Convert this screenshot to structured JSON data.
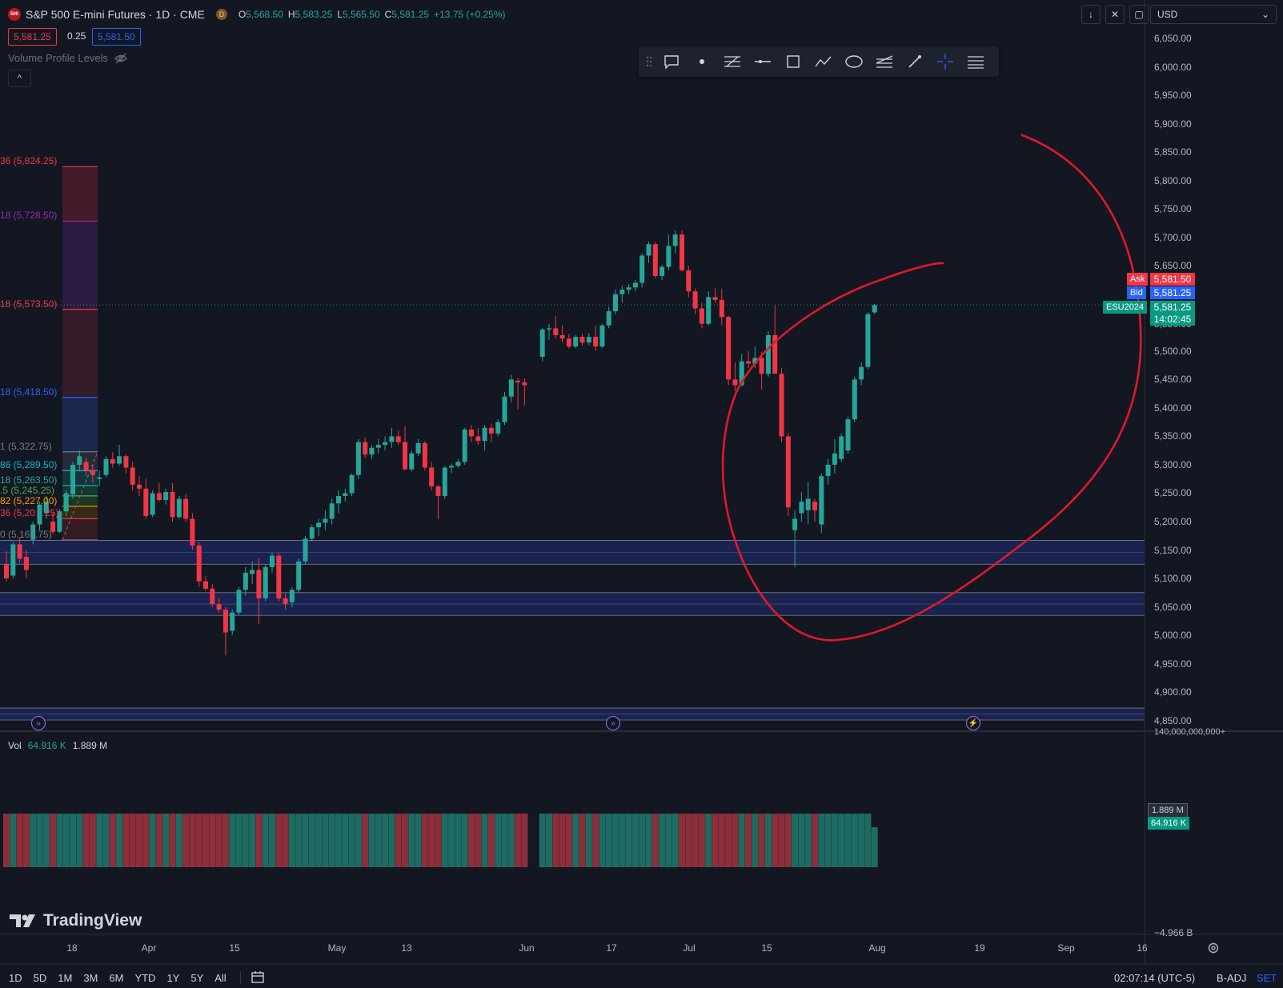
{
  "header": {
    "logo_text": "500",
    "symbol_title": "S&P 500 E-mini Futures · 1D · CME",
    "d_badge": "D",
    "open_key": "O",
    "open": "5,568.50",
    "high_key": "H",
    "high": "5,583.25",
    "low_key": "L",
    "low": "5,565.50",
    "close_key": "C",
    "close": "5,581.25",
    "change": "+13.75 (+0.25%)",
    "sell_price": "5,581.25",
    "spread": "0.25",
    "buy_price": "5,581.50",
    "indicator_label": "Volume Profile Levels",
    "collapse_glyph": "^"
  },
  "top_controls": {
    "download_icon": "download-icon",
    "fullscreen_icon": "fullscreen-icon",
    "restore_icon": "restore-icon",
    "currency": "USD"
  },
  "drawing_toolbar": {
    "tools": [
      "drag-handle-icon",
      "comment-icon",
      "dot-icon",
      "fib-levels-icon",
      "horizontal-line-icon",
      "rectangle-icon",
      "path-icon",
      "ellipse-icon",
      "parallel-channel-icon",
      "brush-icon",
      "crosshair-icon",
      "settings-lines-icon"
    ]
  },
  "y_axis": {
    "labels": [
      "6,050.00",
      "6,000.00",
      "5,950.00",
      "5,900.00",
      "5,850.00",
      "5,800.00",
      "5,750.00",
      "5,700.00",
      "5,650.00",
      "5,500.00",
      "5,450.00",
      "5,400.00",
      "5,350.00",
      "5,300.00",
      "5,250.00",
      "5,200.00",
      "5,150.00",
      "5,100.00",
      "5,050.00",
      "5,000.00",
      "4,950.00",
      "4,900.00",
      "4,850.00"
    ],
    "partial_label": "5,550.00",
    "ask_label": "Ask",
    "ask_price": "5,581.50",
    "bid_label": "Bid",
    "bid_price": "5,581.25",
    "contract": "ESU2024",
    "last_price": "5,581.25",
    "countdown": "14:02:45",
    "vol_axis_top": "140,000,000,000+",
    "vol_axis_bottom": "−4.966 B",
    "vol_tag_1": "1.889 M",
    "vol_tag_2": "64.916 K"
  },
  "fib_levels": [
    {
      "text": "36 (5,824.25)",
      "color": "#f23645"
    },
    {
      "text": "18 (5,728.50)",
      "color": "#9c27b0"
    },
    {
      "text": "18 (5,573.50)",
      "color": "#f23645"
    },
    {
      "text": "18 (5,418.50)",
      "color": "#2962ff"
    },
    {
      "text": "1 (5,322.75)",
      "color": "#787b86"
    },
    {
      "text": "86 (5,289.50)",
      "color": "#00bcd4"
    },
    {
      "text": "18 (5,263.50)",
      "color": "#26a69a"
    },
    {
      "text": ".5 (5,245.25)",
      "color": "#4caf50"
    },
    {
      "text": "82 (5,227.00)",
      "color": "#ff9800"
    },
    {
      "text": "36 (5,20…25)",
      "color": "#f23645"
    },
    {
      "text": "0 (5,167.75)",
      "color": "#787b86"
    }
  ],
  "x_axis": {
    "labels": [
      "18",
      "Apr",
      "15",
      "May",
      "13",
      "Jun",
      "17",
      "Jul",
      "15",
      "Aug",
      "19",
      "Sep",
      "16"
    ]
  },
  "volume": {
    "label": "Vol",
    "value_1": "64.916 K",
    "value_2": "1.889 M"
  },
  "branding": {
    "name": "TradingView"
  },
  "bottom_bar": {
    "timeframes": [
      "1D",
      "5D",
      "1M",
      "3M",
      "6M",
      "YTD",
      "1Y",
      "5Y",
      "All"
    ],
    "clock": "02:07:14 (UTC-5)",
    "adj": "B-ADJ",
    "set": "SET"
  },
  "chart_data": {
    "type": "candlestick",
    "y_range": [
      4825,
      6075
    ],
    "candles": [
      [
        5125,
        5148,
        5095,
        5100
      ],
      [
        5105,
        5165,
        5100,
        5160
      ],
      [
        5160,
        5172,
        5128,
        5135
      ],
      [
        5138,
        5150,
        5100,
        5115
      ],
      [
        5168,
        5200,
        5160,
        5195
      ],
      [
        5195,
        5235,
        5185,
        5230
      ],
      [
        5215,
        5245,
        5205,
        5235
      ],
      [
        5200,
        5215,
        5178,
        5182
      ],
      [
        5182,
        5222,
        5180,
        5218
      ],
      [
        5218,
        5255,
        5210,
        5250
      ],
      [
        5248,
        5305,
        5240,
        5300
      ],
      [
        5300,
        5325,
        5290,
        5315
      ],
      [
        5305,
        5312,
        5280,
        5290
      ],
      [
        5290,
        5300,
        5268,
        5282
      ],
      [
        5275,
        5290,
        5262,
        5278
      ],
      [
        5282,
        5315,
        5278,
        5310
      ],
      [
        5310,
        5322,
        5295,
        5302
      ],
      [
        5302,
        5335,
        5298,
        5315
      ],
      [
        5315,
        5318,
        5285,
        5295
      ],
      [
        5295,
        5305,
        5255,
        5265
      ],
      [
        5265,
        5280,
        5245,
        5258
      ],
      [
        5258,
        5275,
        5205,
        5210
      ],
      [
        5212,
        5255,
        5208,
        5250
      ],
      [
        5250,
        5268,
        5235,
        5238
      ],
      [
        5238,
        5258,
        5230,
        5252
      ],
      [
        5252,
        5268,
        5200,
        5208
      ],
      [
        5208,
        5245,
        5205,
        5240
      ],
      [
        5240,
        5248,
        5200,
        5205
      ],
      [
        5205,
        5215,
        5150,
        5158
      ],
      [
        5158,
        5165,
        5085,
        5095
      ],
      [
        5095,
        5105,
        5078,
        5082
      ],
      [
        5082,
        5090,
        5050,
        5055
      ],
      [
        5055,
        5065,
        5040,
        5045
      ],
      [
        5045,
        5050,
        4965,
        5005
      ],
      [
        5008,
        5045,
        5000,
        5040
      ],
      [
        5040,
        5085,
        5035,
        5080
      ],
      [
        5080,
        5120,
        5070,
        5110
      ],
      [
        5108,
        5130,
        5090,
        5115
      ],
      [
        5115,
        5135,
        5020,
        5065
      ],
      [
        5065,
        5125,
        5060,
        5120
      ],
      [
        5120,
        5145,
        5110,
        5140
      ],
      [
        5140,
        5145,
        5060,
        5065
      ],
      [
        5065,
        5075,
        5045,
        5055
      ],
      [
        5058,
        5085,
        5050,
        5080
      ],
      [
        5080,
        5135,
        5075,
        5130
      ],
      [
        5130,
        5175,
        5125,
        5170
      ],
      [
        5170,
        5195,
        5165,
        5190
      ],
      [
        5190,
        5205,
        5175,
        5198
      ],
      [
        5198,
        5220,
        5185,
        5205
      ],
      [
        5205,
        5240,
        5195,
        5232
      ],
      [
        5232,
        5255,
        5215,
        5245
      ],
      [
        5245,
        5258,
        5235,
        5250
      ],
      [
        5250,
        5285,
        5245,
        5282
      ],
      [
        5282,
        5345,
        5275,
        5340
      ],
      [
        5340,
        5348,
        5312,
        5318
      ],
      [
        5318,
        5335,
        5310,
        5330
      ],
      [
        5330,
        5345,
        5320,
        5335
      ],
      [
        5335,
        5350,
        5325,
        5340
      ],
      [
        5340,
        5365,
        5330,
        5350
      ],
      [
        5350,
        5360,
        5335,
        5340
      ],
      [
        5340,
        5368,
        5290,
        5292
      ],
      [
        5292,
        5325,
        5288,
        5320
      ],
      [
        5320,
        5345,
        5315,
        5338
      ],
      [
        5338,
        5342,
        5290,
        5295
      ],
      [
        5295,
        5305,
        5255,
        5262
      ],
      [
        5262,
        5265,
        5205,
        5245
      ],
      [
        5245,
        5298,
        5240,
        5295
      ],
      [
        5295,
        5302,
        5285,
        5298
      ],
      [
        5298,
        5310,
        5295,
        5305
      ],
      [
        5305,
        5365,
        5300,
        5362
      ],
      [
        5362,
        5370,
        5340,
        5350
      ],
      [
        5350,
        5365,
        5335,
        5342
      ],
      [
        5342,
        5370,
        5325,
        5365
      ],
      [
        5365,
        5372,
        5340,
        5355
      ],
      [
        5355,
        5380,
        5350,
        5375
      ],
      [
        5375,
        5428,
        5370,
        5420
      ],
      [
        5420,
        5458,
        5410,
        5450
      ],
      [
        5448,
        5452,
        5398,
        5445
      ],
      [
        5445,
        5452,
        5405,
        5440
      ],
      [
        5490,
        5540,
        5482,
        5538
      ],
      [
        5538,
        5548,
        5520,
        5540
      ],
      [
        5540,
        5562,
        5522,
        5528
      ],
      [
        5528,
        5545,
        5515,
        5522
      ],
      [
        5522,
        5530,
        5505,
        5508
      ],
      [
        5508,
        5528,
        5505,
        5525
      ],
      [
        5525,
        5530,
        5510,
        5515
      ],
      [
        5515,
        5532,
        5510,
        5525
      ],
      [
        5525,
        5545,
        5500,
        5508
      ],
      [
        5508,
        5548,
        5505,
        5545
      ],
      [
        5545,
        5578,
        5540,
        5570
      ],
      [
        5570,
        5608,
        5565,
        5600
      ],
      [
        5600,
        5615,
        5585,
        5608
      ],
      [
        5608,
        5618,
        5600,
        5612
      ],
      [
        5612,
        5625,
        5605,
        5620
      ],
      [
        5620,
        5672,
        5612,
        5668
      ],
      [
        5668,
        5692,
        5655,
        5688
      ],
      [
        5688,
        5692,
        5628,
        5632
      ],
      [
        5632,
        5652,
        5625,
        5648
      ],
      [
        5648,
        5705,
        5642,
        5685
      ],
      [
        5685,
        5712,
        5672,
        5705
      ],
      [
        5705,
        5712,
        5640,
        5642
      ],
      [
        5642,
        5650,
        5595,
        5605
      ],
      [
        5605,
        5610,
        5565,
        5575
      ],
      [
        5575,
        5585,
        5540,
        5548
      ],
      [
        5548,
        5605,
        5545,
        5595
      ],
      [
        5595,
        5610,
        5585,
        5590
      ],
      [
        5590,
        5610,
        5545,
        5560
      ],
      [
        5560,
        5562,
        5440,
        5450
      ],
      [
        5450,
        5480,
        5430,
        5440
      ],
      [
        5440,
        5495,
        5438,
        5482
      ],
      [
        5482,
        5500,
        5470,
        5478
      ],
      [
        5478,
        5508,
        5470,
        5488
      ],
      [
        5488,
        5498,
        5432,
        5460
      ],
      [
        5460,
        5535,
        5455,
        5528
      ],
      [
        5528,
        5580,
        5462,
        5460
      ],
      [
        5460,
        5470,
        5340,
        5350
      ],
      [
        5350,
        5355,
        5210,
        5225
      ],
      [
        5185,
        5220,
        5120,
        5205
      ],
      [
        5215,
        5252,
        5200,
        5235
      ],
      [
        5220,
        5270,
        5195,
        5240
      ],
      [
        5235,
        5240,
        5200,
        5220
      ],
      [
        5195,
        5285,
        5180,
        5280
      ],
      [
        5280,
        5310,
        5265,
        5300
      ],
      [
        5300,
        5345,
        5285,
        5320
      ],
      [
        5310,
        5355,
        5305,
        5350
      ],
      [
        5325,
        5385,
        5320,
        5380
      ],
      [
        5380,
        5455,
        5375,
        5450
      ],
      [
        5450,
        5480,
        5440,
        5472
      ],
      [
        5472,
        5568,
        5468,
        5565
      ],
      [
        5568,
        5583,
        5565,
        5581
      ]
    ],
    "volume_profile_zones": [
      [
        5125,
        5167
      ],
      [
        5035,
        5075
      ],
      [
        4851,
        4872
      ]
    ],
    "annotation": "hand-drawn red circle"
  }
}
